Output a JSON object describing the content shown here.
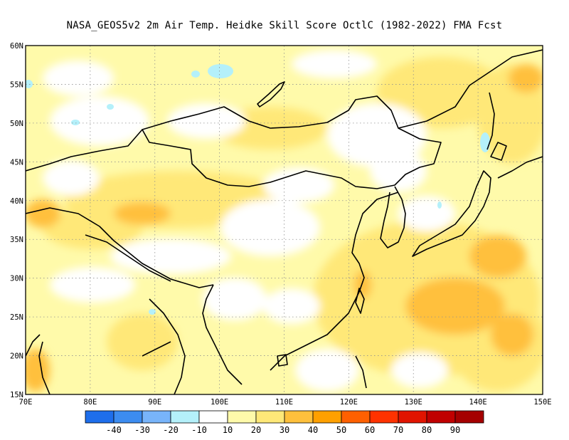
{
  "title": "NASA_GEOS5v2  2m Air Temp. Heidke Skill Score OctlC (1982-2022) FMA Fcst",
  "map": {
    "lon_range": [
      70,
      150
    ],
    "lat_range": [
      15,
      60
    ],
    "lat_labels": [
      "15N",
      "20N",
      "25N",
      "30N",
      "35N",
      "40N",
      "45N",
      "50N",
      "55N",
      "60N"
    ],
    "lon_labels": [
      "70E",
      "80E",
      "90E",
      "100E",
      "110E",
      "120E",
      "130E",
      "140E",
      "150E"
    ],
    "gridlines": "dotted",
    "region": "East Asia"
  },
  "colorbar": {
    "labels": [
      "-40",
      "-30",
      "-20",
      "-10",
      "10",
      "20",
      "30",
      "40",
      "50",
      "60",
      "70",
      "80",
      "90"
    ],
    "colors": [
      "#1e6eeb",
      "#3c8cf0",
      "#78b4fa",
      "#b4f0fa",
      "#ffffff",
      "#fffaaa",
      "#ffe878",
      "#ffc03c",
      "#ffa000",
      "#ff6000",
      "#ff3200",
      "#e11400",
      "#c00000",
      "#a50000"
    ]
  }
}
